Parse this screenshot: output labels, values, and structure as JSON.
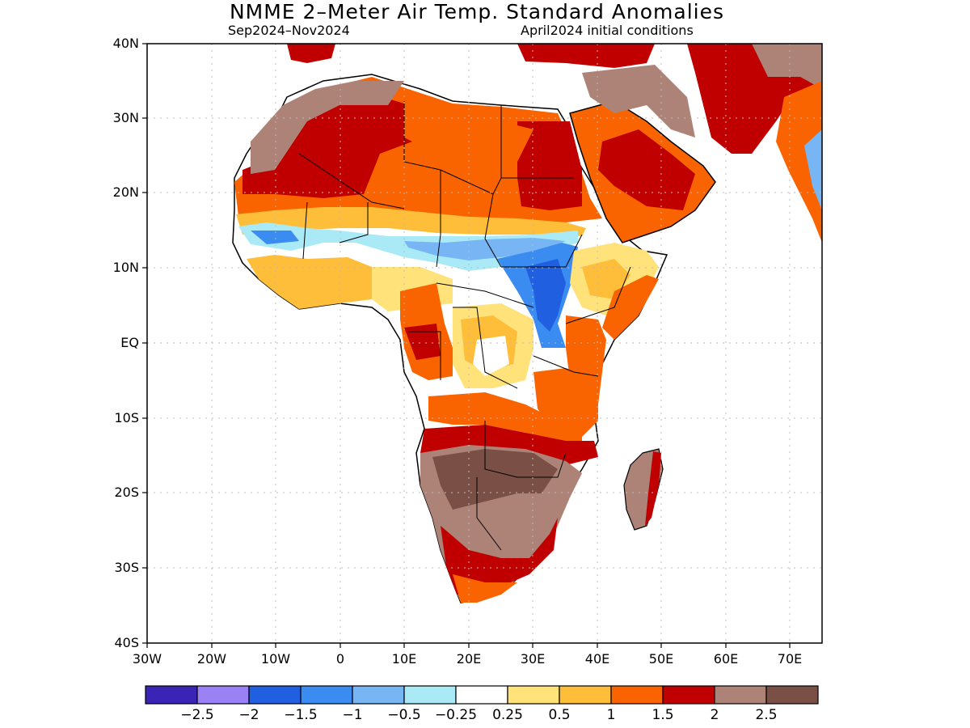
{
  "header": {
    "title": "NMME 2–Meter Air Temp. Standard Anomalies",
    "subtitle_left": "Sep2024–Nov2024",
    "subtitle_right": "April2024 initial conditions"
  },
  "map": {
    "lat_labels": [
      "40N",
      "30N",
      "20N",
      "10N",
      "EQ",
      "10S",
      "20S",
      "30S",
      "40S"
    ],
    "lon_labels": [
      "30W",
      "20W",
      "10W",
      "0",
      "10E",
      "20E",
      "30E",
      "40E",
      "50E",
      "60E",
      "70E"
    ],
    "lon_range": [
      -30,
      75
    ],
    "lat_range": [
      -40,
      40
    ],
    "regions": [
      {
        "name": "north-africa-warm",
        "class": 1.5
      },
      {
        "name": "sahara-strong-warm",
        "class": 2
      },
      {
        "name": "arabia-strong-warm",
        "class": 2
      },
      {
        "name": "sahel-cool",
        "class": -1
      },
      {
        "name": "south-sudan-cool",
        "class": -1.5
      },
      {
        "name": "west-africa-warm",
        "class": 0.5
      },
      {
        "name": "congo-warm",
        "class": 1.5
      },
      {
        "name": "southern-africa-very-warm",
        "class": 2.5
      },
      {
        "name": "madagascar-warm",
        "class": 2
      }
    ]
  },
  "colorbar": {
    "colors": [
      "#3a24b5",
      "#9a82f5",
      "#1f5fe0",
      "#3a8cf0",
      "#77b5f5",
      "#aaeaf7",
      "#ffffff",
      "#ffe27a",
      "#ffbe3a",
      "#fa6400",
      "#c00000",
      "#ad8378",
      "#7a4f45"
    ],
    "labels": [
      "−2.5",
      "−2",
      "−1.5",
      "−1",
      "−0.5",
      "−0.25",
      "0.25",
      "0.5",
      "1",
      "1.5",
      "2",
      "2.5"
    ]
  },
  "colors": {
    "cold_2": "#3a24b5",
    "cold_1_5": "#1f5fe0",
    "cold_1": "#3a8cf0",
    "cold_0_5": "#77b5f5",
    "cold_0_25": "#aaeaf7",
    "warm_0_25": "#ffe27a",
    "warm_0_5": "#ffbe3a",
    "warm_1": "#fa6400",
    "warm_1_5": "#c00000",
    "warm_2": "#ad8378",
    "warm_2_5": "#7a4f45"
  }
}
